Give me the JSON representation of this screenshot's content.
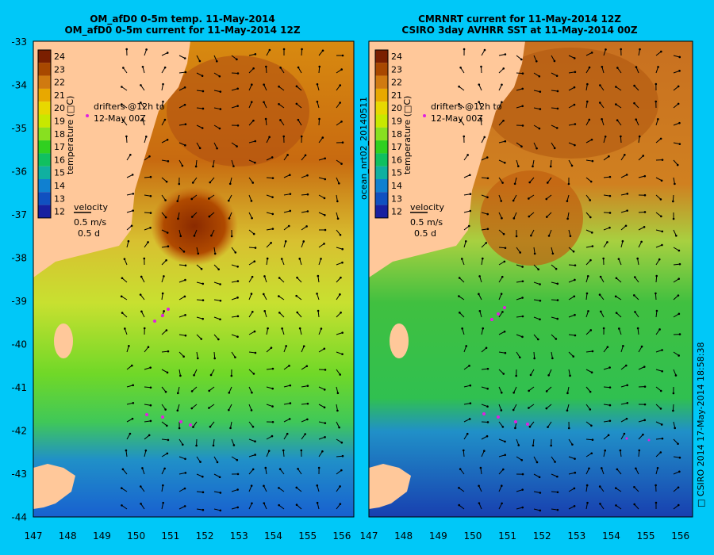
{
  "left_panel": {
    "title_line1": "OM_afD0 0-5m temp. 11-May-2014",
    "title_line2": "OM_afD0 0-5m current for 11-May-2014 12Z"
  },
  "right_panel": {
    "title_line1": "CMRNRT current for 11-May-2014 12Z",
    "title_line2": "CSIRO 3day AVHRR SST at 11-May-2014 00Z"
  },
  "colorbar": {
    "label": "temperature (□C)",
    "ticks": [
      "24",
      "23",
      "22",
      "21",
      "20",
      "19",
      "18",
      "17",
      "16",
      "15",
      "14",
      "13",
      "12"
    ],
    "colors": [
      "#7a1f00",
      "#a84800",
      "#d07a10",
      "#e8a800",
      "#e8d800",
      "#c8e800",
      "#88e020",
      "#30d020",
      "#10c060",
      "#10b0a0",
      "#1080d0",
      "#1050c0",
      "#1820a0"
    ]
  },
  "drifters_label": "drifters @12h to",
  "drifters_label2": "12-May 00Z",
  "velocity_label": "velocity",
  "velocity_speed": "0.5 m/s",
  "velocity_days": "0.5 d",
  "side_label": "ocean_nrt02_20140511",
  "footer": "□ CSIRO 2014  17-May-2014 18:58:38",
  "axes": {
    "x_ticks": [
      "147",
      "148",
      "149",
      "150",
      "151",
      "152",
      "153",
      "154",
      "155",
      "156"
    ],
    "y_ticks": [
      "-33",
      "-34",
      "-35",
      "-36",
      "-37",
      "-38",
      "-39",
      "-40",
      "-41",
      "-42",
      "-43",
      "-44"
    ]
  }
}
